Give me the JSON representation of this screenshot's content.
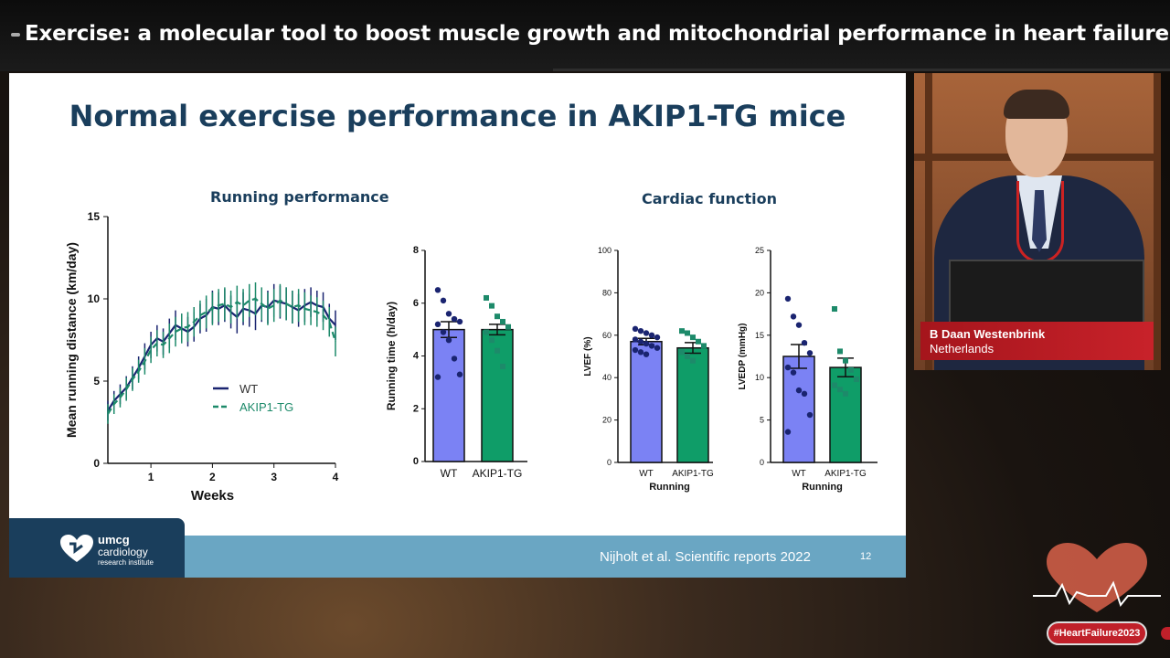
{
  "banner": {
    "title": "Exercise: a molecular tool to boost muscle growth and mitochondrial performance in heart failure"
  },
  "slide": {
    "title": "Normal exercise performance in AKIP1-TG mice",
    "running_section": "Running performance",
    "cardiac_section": "Cardiac function",
    "citation": "Nijholt et al. Scientific reports 2022",
    "slide_number": "12",
    "logo": {
      "line1": "umcg",
      "line2": "cardiology",
      "line3": "research institute"
    }
  },
  "speaker": {
    "name": "B Daan Westenbrink",
    "country": "Netherlands"
  },
  "hashtag": "#HeartFailure2023",
  "colors": {
    "wt": "#1a2470",
    "tg": "#1d8a6a",
    "wt_fill": "#7b82f4",
    "tg_fill": "#0f9d68",
    "title": "#1a3e5c"
  },
  "chart_data": [
    {
      "type": "line",
      "xlabel": "Weeks",
      "ylabel": "Mean running distance (km/day)",
      "xlim": [
        0.3,
        4
      ],
      "ylim": [
        0,
        15
      ],
      "xticks": [
        "1",
        "2",
        "3",
        "4"
      ],
      "yticks": [
        "0",
        "5",
        "10",
        "15"
      ],
      "legend_position": "lower-right",
      "series": [
        {
          "name": "WT",
          "x": [
            0.3,
            0.4,
            0.5,
            0.6,
            0.7,
            0.8,
            0.9,
            1.0,
            1.1,
            1.2,
            1.3,
            1.4,
            1.5,
            1.6,
            1.7,
            1.8,
            1.9,
            2.0,
            2.1,
            2.2,
            2.3,
            2.4,
            2.5,
            2.6,
            2.7,
            2.8,
            2.9,
            3.0,
            3.1,
            3.2,
            3.3,
            3.4,
            3.5,
            3.6,
            3.7,
            3.8,
            3.9,
            4.0
          ],
          "y": [
            3.2,
            3.8,
            4.2,
            4.6,
            5.2,
            5.8,
            6.5,
            7.2,
            7.6,
            7.4,
            7.9,
            8.4,
            8.2,
            8.0,
            8.3,
            8.8,
            9.0,
            9.5,
            9.4,
            9.6,
            9.2,
            8.9,
            9.4,
            9.3,
            9.1,
            9.6,
            9.5,
            9.9,
            9.8,
            9.7,
            9.5,
            9.3,
            9.6,
            9.8,
            9.6,
            9.5,
            8.8,
            8.4
          ],
          "error": [
            0.6,
            0.6,
            0.6,
            0.7,
            0.7,
            0.7,
            0.8,
            0.8,
            0.8,
            0.8,
            0.9,
            0.9,
            0.9,
            0.9,
            0.9,
            0.9,
            1.0,
            1.0,
            1.0,
            1.0,
            1.0,
            1.0,
            1.0,
            1.0,
            1.0,
            1.0,
            1.0,
            1.0,
            1.0,
            1.0,
            1.0,
            1.0,
            1.0,
            0.9,
            0.9,
            0.9,
            0.9,
            0.9
          ]
        },
        {
          "name": "AKIP1-TG",
          "x": [
            0.3,
            0.4,
            0.5,
            0.6,
            0.7,
            0.8,
            0.9,
            1.0,
            1.1,
            1.2,
            1.3,
            1.4,
            1.5,
            1.6,
            1.7,
            1.8,
            1.9,
            2.0,
            2.1,
            2.2,
            2.3,
            2.4,
            2.5,
            2.6,
            2.7,
            2.8,
            2.9,
            3.0,
            3.1,
            3.2,
            3.3,
            3.4,
            3.5,
            3.6,
            3.7,
            3.8,
            3.9,
            4.0
          ],
          "y": [
            3.0,
            3.6,
            4.0,
            4.5,
            5.1,
            5.6,
            6.2,
            6.9,
            7.3,
            7.2,
            7.6,
            8.0,
            8.2,
            8.3,
            8.6,
            9.0,
            9.2,
            9.4,
            9.6,
            9.7,
            9.5,
            9.8,
            9.6,
            9.9,
            10.0,
            9.7,
            9.4,
            9.6,
            9.9,
            9.7,
            9.5,
            9.6,
            9.4,
            9.3,
            9.2,
            9.0,
            8.6,
            7.4
          ],
          "error": [
            0.6,
            0.6,
            0.6,
            0.7,
            0.7,
            0.7,
            0.8,
            0.8,
            0.8,
            0.8,
            0.9,
            0.9,
            0.9,
            0.9,
            0.9,
            0.9,
            1.0,
            1.0,
            1.0,
            1.0,
            1.0,
            1.0,
            1.0,
            1.0,
            1.0,
            1.0,
            1.0,
            1.0,
            1.0,
            1.0,
            1.0,
            1.0,
            1.0,
            0.9,
            0.9,
            0.9,
            0.9,
            0.9
          ]
        }
      ]
    },
    {
      "type": "bar",
      "ylabel": "Running time (h/day)",
      "ylim": [
        0,
        8
      ],
      "yticks": [
        "0",
        "2",
        "4",
        "6",
        "8"
      ],
      "categories": [
        "WT",
        "AKIP1-TG"
      ],
      "values": [
        5.0,
        5.0
      ],
      "sem": [
        0.3,
        0.2
      ],
      "points": [
        [
          6.5,
          6.1,
          5.6,
          5.4,
          5.3,
          5.2,
          4.9,
          4.6,
          3.9,
          3.3,
          3.2
        ],
        [
          6.2,
          5.9,
          5.5,
          5.3,
          5.1,
          4.9,
          4.6,
          4.2,
          3.6
        ]
      ]
    },
    {
      "type": "bar",
      "ylabel": "LVEF (%)",
      "xlabel": "Running",
      "ylim": [
        0,
        100
      ],
      "yticks": [
        "0",
        "20",
        "40",
        "60",
        "80",
        "100"
      ],
      "categories": [
        "WT",
        "AKIP1-TG"
      ],
      "values": [
        57,
        54
      ],
      "sem": [
        1.5,
        2.5
      ],
      "points": [
        [
          63,
          62,
          61,
          60,
          59,
          58,
          57,
          56,
          55,
          54,
          53,
          52,
          51
        ],
        [
          62,
          61,
          59,
          57,
          55,
          52,
          50,
          48
        ]
      ]
    },
    {
      "type": "bar",
      "ylabel": "LVEDP (mmHg)",
      "xlabel": "Running",
      "ylim": [
        0,
        25
      ],
      "yticks": [
        "0",
        "5",
        "10",
        "15",
        "20",
        "25"
      ],
      "categories": [
        "WT",
        "AKIP1-TG"
      ],
      "values": [
        12.5,
        11.2
      ],
      "sem": [
        1.4,
        1.1
      ],
      "points": [
        [
          19.3,
          17.2,
          16.2,
          14.1,
          12.9,
          11.2,
          10.6,
          8.5,
          8.1,
          5.6,
          3.6
        ],
        [
          18.1,
          13.1,
          12.0,
          10.9,
          9.8,
          9.1,
          8.6,
          8.1
        ]
      ]
    }
  ]
}
